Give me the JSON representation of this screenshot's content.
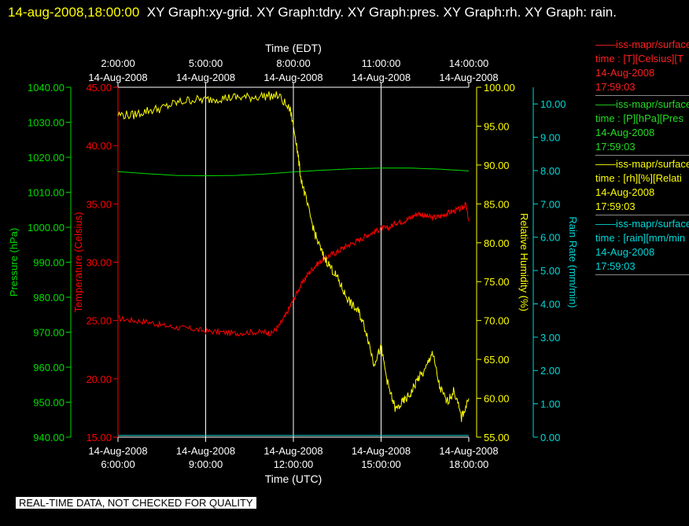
{
  "header": {
    "timestamp": "14-aug-2008,18:00:00",
    "titles": "XY Graph:xy-grid.  XY Graph:tdry.  XY Graph:pres.  XY Graph:rh.  XY Graph: rain."
  },
  "colors": {
    "temperature": "#ff0000",
    "pressure": "#00dd00",
    "humidity": "#ffff00",
    "rain": "#00d8d8",
    "grid": "#ffffff",
    "background": "#000000"
  },
  "legend": [
    {
      "name": "——iss-mapr/surface",
      "var": "time : [T][Celsius][T",
      "date": "14-Aug-2008",
      "time": "17:59:03",
      "color": "#ff2020"
    },
    {
      "name": "——iss-mapr/surface",
      "var": "time : [P][hPa][Pres",
      "date": "14-Aug-2008",
      "time": "17:59:03",
      "color": "#22dd22"
    },
    {
      "name": "——iss-mapr/surface",
      "var": "time : [rh][%][Relati",
      "date": "14-Aug-2008",
      "time": "17:59:03",
      "color": "#ffff00"
    },
    {
      "name": "——iss-mapr/surface",
      "var": "time : [rain][mm/min",
      "date": "14-Aug-2008",
      "time": "17:59:03",
      "color": "#00d8d8"
    }
  ],
  "footer": {
    "quality": "REAL-TIME DATA, NOT CHECKED FOR QUALITY"
  },
  "chart_data": {
    "type": "line",
    "xlabel_top": "Time (EDT)",
    "xlabel_bottom": "Time (UTC)",
    "xlim": [
      6,
      18
    ],
    "ticks_bottom": [
      {
        "x": 6,
        "date": "14-Aug-2008",
        "time": "6:00:00"
      },
      {
        "x": 9,
        "date": "14-Aug-2008",
        "time": "9:00:00"
      },
      {
        "x": 12,
        "date": "14-Aug-2008",
        "time": "12:00:00"
      },
      {
        "x": 15,
        "date": "14-Aug-2008",
        "time": "15:00:00"
      },
      {
        "x": 18,
        "date": "14-Aug-2008",
        "time": "18:00:00"
      }
    ],
    "ticks_top": [
      {
        "x": 6,
        "time": "2:00:00",
        "date": "14-Aug-2008"
      },
      {
        "x": 9,
        "time": "5:00:00",
        "date": "14-Aug-2008"
      },
      {
        "x": 12,
        "time": "8:00:00",
        "date": "14-Aug-2008"
      },
      {
        "x": 15,
        "time": "11:00:00",
        "date": "14-Aug-2008"
      },
      {
        "x": 18,
        "time": "14:00:00",
        "date": "14-Aug-2008"
      }
    ],
    "grid": true,
    "axes": {
      "pressure": {
        "label": "Pressure (hPa)",
        "ylim": [
          940,
          1040
        ],
        "ticks": [
          "940.00",
          "950.00",
          "960.00",
          "970.00",
          "980.00",
          "990.00",
          "1000.00",
          "1010.00",
          "1020.00",
          "1030.00",
          "1040.00"
        ]
      },
      "temperature": {
        "label": "Temperature (Celsius)",
        "ylim": [
          15,
          45
        ],
        "ticks": [
          "15.00",
          "20.00",
          "25.00",
          "30.00",
          "35.00",
          "40.00",
          "45.00"
        ]
      },
      "humidity": {
        "label": "Relative Humidity (%)",
        "ylim": [
          55,
          100
        ],
        "ticks": [
          "55.00",
          "60.00",
          "65.00",
          "70.00",
          "75.00",
          "80.00",
          "85.00",
          "90.00",
          "95.00",
          "100.00"
        ]
      },
      "rain": {
        "label": "Rain Rate (mm/min)",
        "ylim": [
          0,
          10.5
        ],
        "ticks": [
          "0.00",
          "1.00",
          "2.00",
          "3.00",
          "4.00",
          "5.00",
          "6.00",
          "7.00",
          "8.00",
          "9.00",
          "10.00"
        ]
      }
    },
    "series": [
      {
        "axis": "temperature",
        "x": [
          6,
          6.5,
          7,
          7.5,
          8,
          8.5,
          9,
          9.5,
          10,
          10.5,
          11,
          11.25,
          11.5,
          11.75,
          12,
          12.25,
          12.5,
          12.75,
          13,
          13.25,
          13.5,
          13.75,
          14,
          14.25,
          14.5,
          14.75,
          15,
          15.25,
          15.5,
          15.75,
          16,
          16.25,
          16.5,
          16.75,
          17,
          17.25,
          17.5,
          17.75,
          17.9,
          18
        ],
        "y": [
          25.2,
          25.0,
          24.9,
          24.6,
          24.4,
          24.3,
          24.1,
          24.0,
          23.9,
          24.0,
          24.0,
          23.9,
          24.5,
          25.5,
          26.8,
          28.0,
          29.0,
          29.7,
          30.2,
          30.6,
          30.9,
          31.3,
          31.6,
          31.9,
          32.3,
          32.6,
          32.9,
          32.9,
          33.4,
          33.5,
          33.8,
          34.2,
          34.0,
          33.8,
          33.9,
          34.2,
          34.4,
          34.6,
          35.0,
          33.5
        ]
      },
      {
        "axis": "pressure",
        "x": [
          6,
          7,
          8,
          9,
          10,
          11,
          12,
          13,
          14,
          15,
          16,
          17,
          18
        ],
        "y": [
          1015.9,
          1015.3,
          1014.8,
          1014.7,
          1014.8,
          1015.2,
          1015.8,
          1016.3,
          1016.7,
          1016.9,
          1016.9,
          1016.6,
          1016.1
        ]
      },
      {
        "axis": "humidity",
        "x": [
          6,
          6.5,
          7,
          7.5,
          8,
          8.5,
          9,
          9.5,
          10,
          10.5,
          11,
          11.5,
          11.9,
          12.1,
          12.25,
          12.5,
          12.75,
          13,
          13.25,
          13.5,
          13.75,
          14,
          14.25,
          14.5,
          14.75,
          15,
          15.25,
          15.5,
          15.75,
          16,
          16.25,
          16.5,
          16.75,
          17,
          17.25,
          17.5,
          17.75,
          18
        ],
        "y": [
          96.5,
          96.4,
          97.0,
          97.3,
          98.0,
          98.4,
          98.4,
          98.6,
          98.7,
          98.7,
          98.9,
          98.9,
          97.0,
          93.0,
          88.5,
          84.5,
          81.0,
          78.5,
          77.0,
          75.5,
          73.5,
          72.0,
          71.0,
          68.5,
          64.5,
          66.5,
          61.5,
          58.5,
          59.5,
          60.5,
          62.5,
          63.5,
          66.0,
          61.5,
          59.5,
          61.0,
          57.5,
          60.0
        ]
      },
      {
        "axis": "rain",
        "x": [
          6,
          18
        ],
        "y": [
          0.05,
          0.05
        ]
      }
    ]
  }
}
